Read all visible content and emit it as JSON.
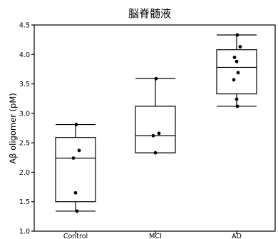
{
  "chart_data": {
    "type": "box",
    "title": "脳脊髄液",
    "ylabel": "Aβ oligomer (pM)",
    "xlabel": "",
    "ylim": [
      1.0,
      4.5
    ],
    "yticks": [
      "1.0",
      "1.5",
      "2.0",
      "2.5",
      "3.0",
      "3.5",
      "4.0",
      "4.5"
    ],
    "grid": false,
    "categories": [
      "Control",
      "MCI",
      "AD"
    ],
    "boxes": [
      {
        "name": "Control",
        "min": 1.34,
        "q1": 1.5,
        "median": 2.24,
        "q3": 2.59,
        "max": 2.81,
        "points": [
          2.81,
          2.37,
          2.24,
          1.65,
          1.34
        ]
      },
      {
        "name": "MCI",
        "min": 2.33,
        "q1": 2.33,
        "median": 2.62,
        "q3": 3.12,
        "max": 3.59,
        "points": [
          3.59,
          2.66,
          2.62,
          2.33
        ]
      },
      {
        "name": "AD",
        "min": 3.12,
        "q1": 3.33,
        "median": 3.78,
        "q3": 4.08,
        "max": 4.33,
        "points": [
          4.33,
          4.13,
          3.95,
          3.88,
          3.69,
          3.57,
          3.24,
          3.12
        ]
      }
    ]
  }
}
